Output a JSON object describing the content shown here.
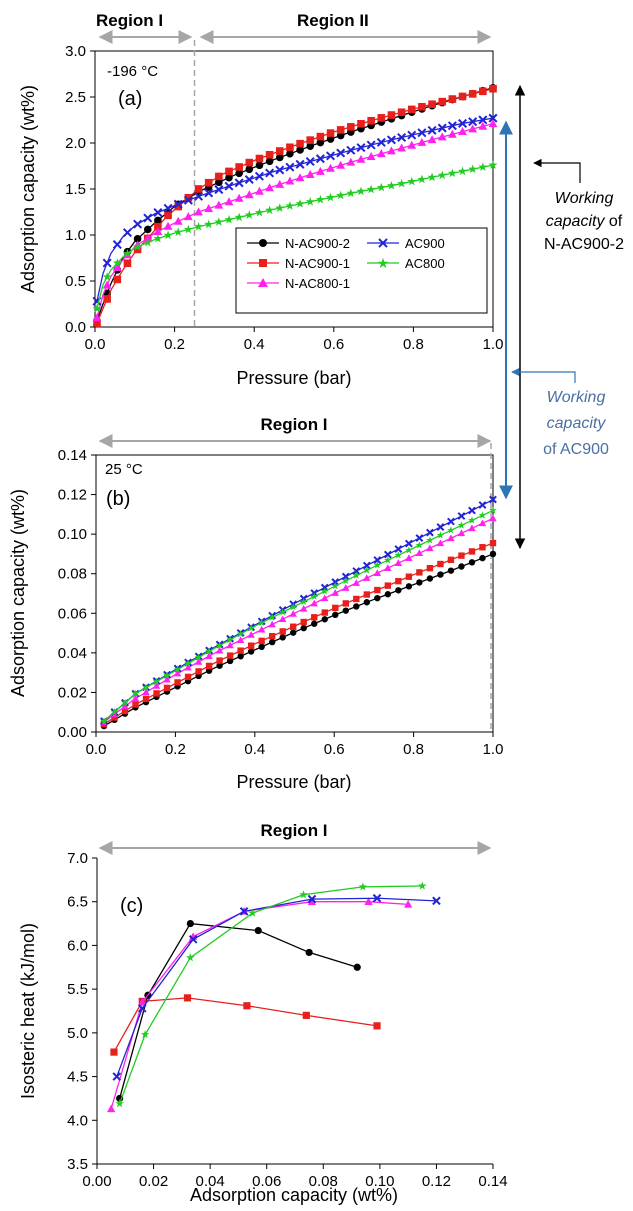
{
  "colors": {
    "N-AC900-2": "#000000",
    "N-AC900-1": "#e8201c",
    "N-AC800-1": "#ff22ee",
    "AC900": "#2323d6",
    "AC800": "#22cc22",
    "region_arrow": "#a6a6a6",
    "working_ac900": "#2e75b6",
    "working_ac900_text": "#4a6fa5"
  },
  "annotations": {
    "region_1": "Region I",
    "region_2": "Region II",
    "working_nac_line1": "Working",
    "working_nac_line2_italic": "capacity",
    "working_nac_line2_plain": " of",
    "working_nac_line3": "N-AC900-2",
    "working_ac_line1": "Working",
    "working_ac_line2": "capacity",
    "working_ac_line3": "of AC900"
  },
  "chart_data": [
    {
      "id": "a",
      "type": "line",
      "panel_label": "(a)",
      "temperature": "-196 °C",
      "xlabel": "Pressure (bar)",
      "ylabel": "Adsorption capacity (wt%)",
      "xlim": [
        0,
        1.0
      ],
      "ylim": [
        0,
        3.0
      ],
      "xticks": [
        "0.0",
        "0.2",
        "0.4",
        "0.6",
        "0.8",
        "1.0"
      ],
      "yticks": [
        "0.0",
        "0.5",
        "1.0",
        "1.5",
        "2.0",
        "2.5",
        "3.0"
      ],
      "region_boundary_x": 0.25,
      "legend": [
        "N-AC900-2",
        "AC900",
        "N-AC900-1",
        "AC800",
        "N-AC800-1"
      ],
      "series": [
        {
          "name": "N-AC900-2",
          "marker": "circle",
          "x": [
            0.005,
            0.02,
            0.04,
            0.07,
            0.1,
            0.15,
            0.2,
            0.26,
            0.35,
            0.45,
            0.55,
            0.65,
            0.75,
            0.85,
            0.92,
            1.0
          ],
          "y": [
            0.07,
            0.25,
            0.47,
            0.75,
            0.93,
            1.13,
            1.31,
            1.47,
            1.65,
            1.82,
            1.98,
            2.13,
            2.27,
            2.41,
            2.5,
            2.6
          ]
        },
        {
          "name": "N-AC900-1",
          "marker": "square",
          "x": [
            0.005,
            0.02,
            0.04,
            0.07,
            0.1,
            0.13,
            0.18,
            0.22,
            0.26,
            0.32,
            0.4,
            0.5,
            0.6,
            0.7,
            0.8,
            0.9,
            1.0
          ],
          "y": [
            0.04,
            0.2,
            0.4,
            0.62,
            0.81,
            0.95,
            1.2,
            1.35,
            1.5,
            1.66,
            1.81,
            1.97,
            2.12,
            2.25,
            2.37,
            2.48,
            2.59
          ]
        },
        {
          "name": "N-AC800-1",
          "marker": "triangle",
          "x": [
            0.005,
            0.02,
            0.04,
            0.07,
            0.1,
            0.15,
            0.2,
            0.26,
            0.35,
            0.45,
            0.55,
            0.65,
            0.75,
            0.85,
            0.92,
            1.0
          ],
          "y": [
            0.1,
            0.35,
            0.55,
            0.73,
            0.87,
            1.02,
            1.13,
            1.25,
            1.38,
            1.53,
            1.67,
            1.8,
            1.92,
            2.04,
            2.12,
            2.21
          ]
        },
        {
          "name": "AC900",
          "marker": "x",
          "x": [
            0.005,
            0.02,
            0.04,
            0.07,
            0.1,
            0.15,
            0.2,
            0.26,
            0.35,
            0.45,
            0.55,
            0.65,
            0.75,
            0.85,
            0.92,
            1.0
          ],
          "y": [
            0.28,
            0.58,
            0.8,
            0.98,
            1.1,
            1.23,
            1.32,
            1.42,
            1.55,
            1.69,
            1.81,
            1.93,
            2.04,
            2.14,
            2.21,
            2.27
          ]
        },
        {
          "name": "AC800",
          "marker": "star",
          "x": [
            0.005,
            0.02,
            0.04,
            0.07,
            0.1,
            0.15,
            0.2,
            0.26,
            0.35,
            0.45,
            0.55,
            0.65,
            0.75,
            0.85,
            0.92,
            1.0
          ],
          "y": [
            0.2,
            0.46,
            0.62,
            0.76,
            0.86,
            0.95,
            1.02,
            1.09,
            1.18,
            1.28,
            1.37,
            1.46,
            1.54,
            1.63,
            1.69,
            1.76
          ]
        }
      ]
    },
    {
      "id": "b",
      "type": "line",
      "panel_label": "(b)",
      "temperature": "25 °C",
      "xlabel": "Pressure (bar)",
      "ylabel": "Adsorption capacity (wt%)",
      "xlim": [
        0,
        1.0
      ],
      "ylim": [
        0,
        0.14
      ],
      "xticks": [
        "0.0",
        "0.2",
        "0.4",
        "0.6",
        "0.8",
        "1.0"
      ],
      "yticks": [
        "0.00",
        "0.02",
        "0.04",
        "0.06",
        "0.08",
        "0.10",
        "0.12",
        "0.14"
      ],
      "series": [
        {
          "name": "N-AC900-2",
          "marker": "circle",
          "x": [
            0.02,
            0.1,
            0.2,
            0.3,
            0.4,
            0.5,
            0.6,
            0.7,
            0.8,
            0.9,
            1.0
          ],
          "y": [
            0.003,
            0.0125,
            0.0225,
            0.0325,
            0.0415,
            0.0505,
            0.059,
            0.067,
            0.0745,
            0.082,
            0.09
          ]
        },
        {
          "name": "N-AC900-1",
          "marker": "square",
          "x": [
            0.02,
            0.1,
            0.2,
            0.3,
            0.4,
            0.5,
            0.6,
            0.7,
            0.8,
            0.9,
            1.0
          ],
          "y": [
            0.004,
            0.014,
            0.0245,
            0.035,
            0.0445,
            0.0535,
            0.0625,
            0.071,
            0.0795,
            0.0875,
            0.0955
          ]
        },
        {
          "name": "N-AC800-1",
          "marker": "triangle",
          "x": [
            0.02,
            0.1,
            0.2,
            0.3,
            0.4,
            0.5,
            0.6,
            0.7,
            0.8,
            0.9,
            1.0
          ],
          "y": [
            0.005,
            0.017,
            0.029,
            0.04,
            0.05,
            0.06,
            0.07,
            0.0795,
            0.089,
            0.0985,
            0.108
          ]
        },
        {
          "name": "AC900",
          "marker": "x",
          "x": [
            0.02,
            0.1,
            0.2,
            0.3,
            0.4,
            0.5,
            0.6,
            0.7,
            0.8,
            0.9,
            1.0
          ],
          "y": [
            0.0055,
            0.0195,
            0.0315,
            0.043,
            0.054,
            0.065,
            0.0755,
            0.086,
            0.0965,
            0.107,
            0.1175
          ]
        },
        {
          "name": "AC800",
          "marker": "star",
          "x": [
            0.02,
            0.1,
            0.2,
            0.3,
            0.4,
            0.5,
            0.6,
            0.7,
            0.8,
            0.9,
            1.0
          ],
          "y": [
            0.0055,
            0.0195,
            0.031,
            0.0425,
            0.0535,
            0.0635,
            0.0735,
            0.0835,
            0.093,
            0.1025,
            0.112
          ]
        }
      ]
    },
    {
      "id": "c",
      "type": "line",
      "panel_label": "(c)",
      "xlabel": "Adsorption capacity (wt%)",
      "ylabel": "Isosteric heat (kJ/mol)",
      "xlim": [
        0,
        0.14
      ],
      "ylim": [
        3.5,
        7.0
      ],
      "xticks": [
        "0.00",
        "0.02",
        "0.04",
        "0.06",
        "0.08",
        "0.10",
        "0.12",
        "0.14"
      ],
      "yticks": [
        "3.5",
        "4.0",
        "4.5",
        "5.0",
        "5.5",
        "6.0",
        "6.5",
        "7.0"
      ],
      "series": [
        {
          "name": "N-AC900-2",
          "marker": "circle",
          "x": [
            0.008,
            0.018,
            0.033,
            0.057,
            0.075,
            0.092
          ],
          "y": [
            4.25,
            5.43,
            6.25,
            6.17,
            5.92,
            5.75
          ]
        },
        {
          "name": "N-AC900-1",
          "marker": "square",
          "x": [
            0.006,
            0.016,
            0.032,
            0.053,
            0.074,
            0.099
          ],
          "y": [
            4.78,
            5.36,
            5.4,
            5.31,
            5.2,
            5.08
          ]
        },
        {
          "name": "N-AC800-1",
          "marker": "triangle",
          "x": [
            0.005,
            0.016,
            0.034,
            0.052,
            0.076,
            0.096,
            0.11
          ],
          "y": [
            4.13,
            5.35,
            6.1,
            6.39,
            6.5,
            6.5,
            6.47
          ]
        },
        {
          "name": "AC900",
          "marker": "x",
          "x": [
            0.007,
            0.016,
            0.034,
            0.052,
            0.076,
            0.099,
            0.12
          ],
          "y": [
            4.5,
            5.28,
            6.07,
            6.39,
            6.53,
            6.54,
            6.51
          ]
        },
        {
          "name": "AC800",
          "marker": "star",
          "x": [
            0.008,
            0.017,
            0.033,
            0.055,
            0.073,
            0.094,
            0.115
          ],
          "y": [
            4.19,
            4.98,
            5.86,
            6.37,
            6.58,
            6.67,
            6.68
          ]
        }
      ]
    }
  ]
}
